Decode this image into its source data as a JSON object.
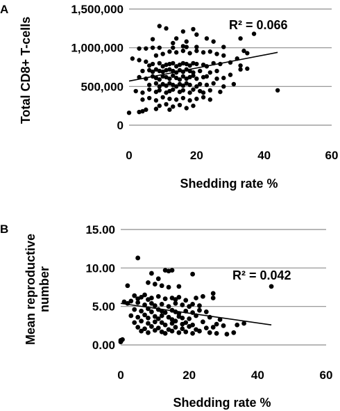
{
  "chart_data": [
    {
      "panel": "A",
      "type": "scatter",
      "xlabel": "Shedding rate %",
      "ylabel": "Total CD8+ T-cells",
      "xlim": [
        0,
        60
      ],
      "ylim": [
        0,
        1500000
      ],
      "xticks": [
        0,
        20,
        40,
        60
      ],
      "xtick_labels": [
        "0",
        "20",
        "40",
        "60"
      ],
      "yticks": [
        0,
        500000,
        1000000,
        1500000
      ],
      "ytick_labels": [
        "0",
        "500,000",
        "1,000,000",
        "1,500,000"
      ],
      "grid": "horizontal",
      "annotation": "R² = 0.066",
      "trendline": {
        "x": [
          0,
          44
        ],
        "y": [
          570000,
          940000
        ]
      },
      "points": [
        [
          9,
          1280000
        ],
        [
          11,
          1250000
        ],
        [
          19,
          1240000
        ],
        [
          20,
          1170000
        ],
        [
          37,
          1180000
        ],
        [
          23,
          1120000
        ],
        [
          33,
          1120000
        ],
        [
          16,
          1210000
        ],
        [
          14,
          1120000
        ],
        [
          7,
          1110000
        ],
        [
          13,
          1060000
        ],
        [
          17,
          1080000
        ],
        [
          25,
          1080000
        ],
        [
          3,
          990000
        ],
        [
          5,
          990000
        ],
        [
          7,
          1000000
        ],
        [
          9,
          1000000
        ],
        [
          13,
          1000000
        ],
        [
          17,
          1010000
        ],
        [
          20,
          1010000
        ],
        [
          28,
          1010000
        ],
        [
          16,
          1020000
        ],
        [
          1,
          860000
        ],
        [
          3,
          840000
        ],
        [
          5,
          820000
        ],
        [
          8,
          900000
        ],
        [
          10,
          920000
        ],
        [
          12,
          950000
        ],
        [
          14,
          940000
        ],
        [
          16,
          960000
        ],
        [
          18,
          930000
        ],
        [
          20,
          960000
        ],
        [
          22,
          940000
        ],
        [
          24,
          950000
        ],
        [
          26,
          920000
        ],
        [
          28,
          900000
        ],
        [
          34,
          960000
        ],
        [
          35,
          930000
        ],
        [
          6,
          770000
        ],
        [
          7,
          790000
        ],
        [
          9,
          800000
        ],
        [
          10,
          760000
        ],
        [
          11,
          780000
        ],
        [
          12,
          790000
        ],
        [
          13,
          800000
        ],
        [
          14,
          760000
        ],
        [
          15,
          780000
        ],
        [
          16,
          800000
        ],
        [
          17,
          790000
        ],
        [
          18,
          770000
        ],
        [
          19,
          800000
        ],
        [
          20,
          790000
        ],
        [
          22,
          780000
        ],
        [
          23,
          760000
        ],
        [
          25,
          800000
        ],
        [
          27,
          790000
        ],
        [
          30,
          810000
        ],
        [
          32,
          860000
        ],
        [
          33,
          770000
        ],
        [
          4,
          700000
        ],
        [
          6,
          710000
        ],
        [
          7,
          690000
        ],
        [
          8,
          720000
        ],
        [
          9,
          700000
        ],
        [
          10,
          690000
        ],
        [
          11,
          710000
        ],
        [
          12,
          720000
        ],
        [
          13,
          700000
        ],
        [
          14,
          680000
        ],
        [
          15,
          710000
        ],
        [
          16,
          690000
        ],
        [
          17,
          720000
        ],
        [
          18,
          700000
        ],
        [
          19,
          680000
        ],
        [
          21,
          700000
        ],
        [
          24,
          680000
        ],
        [
          26,
          700000
        ],
        [
          33,
          720000
        ],
        [
          35,
          730000
        ],
        [
          3,
          620000
        ],
        [
          5,
          600000
        ],
        [
          7,
          630000
        ],
        [
          8,
          610000
        ],
        [
          9,
          590000
        ],
        [
          10,
          630000
        ],
        [
          11,
          620000
        ],
        [
          12,
          600000
        ],
        [
          13,
          640000
        ],
        [
          14,
          610000
        ],
        [
          15,
          590000
        ],
        [
          16,
          630000
        ],
        [
          17,
          600000
        ],
        [
          18,
          620000
        ],
        [
          19,
          640000
        ],
        [
          20,
          600000
        ],
        [
          22,
          620000
        ],
        [
          23,
          630000
        ],
        [
          26,
          600000
        ],
        [
          28,
          610000
        ],
        [
          30,
          650000
        ],
        [
          6,
          520000
        ],
        [
          8,
          540000
        ],
        [
          9,
          500000
        ],
        [
          10,
          530000
        ],
        [
          11,
          510000
        ],
        [
          12,
          540000
        ],
        [
          13,
          520000
        ],
        [
          14,
          500000
        ],
        [
          15,
          530000
        ],
        [
          16,
          510000
        ],
        [
          17,
          540000
        ],
        [
          18,
          520000
        ],
        [
          20,
          500000
        ],
        [
          21,
          530000
        ],
        [
          23,
          520000
        ],
        [
          25,
          540000
        ],
        [
          28,
          500000
        ],
        [
          31,
          530000
        ],
        [
          2,
          440000
        ],
        [
          4,
          420000
        ],
        [
          6,
          460000
        ],
        [
          8,
          430000
        ],
        [
          9,
          450000
        ],
        [
          11,
          420000
        ],
        [
          12,
          440000
        ],
        [
          13,
          460000
        ],
        [
          15,
          430000
        ],
        [
          16,
          450000
        ],
        [
          18,
          420000
        ],
        [
          19,
          460000
        ],
        [
          21,
          440000
        ],
        [
          22,
          420000
        ],
        [
          24,
          450000
        ],
        [
          27,
          430000
        ],
        [
          44,
          450000
        ],
        [
          4,
          330000
        ],
        [
          6,
          350000
        ],
        [
          8,
          320000
        ],
        [
          10,
          360000
        ],
        [
          12,
          340000
        ],
        [
          14,
          330000
        ],
        [
          16,
          350000
        ],
        [
          18,
          320000
        ],
        [
          20,
          340000
        ],
        [
          22,
          360000
        ],
        [
          24,
          330000
        ],
        [
          9,
          250000
        ],
        [
          11,
          270000
        ],
        [
          13,
          240000
        ],
        [
          15,
          260000
        ],
        [
          17,
          220000
        ],
        [
          19,
          250000
        ],
        [
          0,
          160000
        ],
        [
          3,
          170000
        ],
        [
          4,
          180000
        ],
        [
          5,
          200000
        ],
        [
          8,
          210000
        ],
        [
          12,
          200000
        ]
      ]
    },
    {
      "panel": "B",
      "type": "scatter",
      "xlabel": "Shedding rate %",
      "ylabel_lines": [
        "Mean reproductive",
        "number"
      ],
      "xlim": [
        0,
        60
      ],
      "ylim": [
        0,
        15
      ],
      "xticks": [
        0,
        20,
        40,
        60
      ],
      "xtick_labels": [
        "0",
        "20",
        "40",
        "60"
      ],
      "yticks": [
        0,
        5,
        10,
        15
      ],
      "ytick_labels": [
        "0.00",
        "5.00",
        "10.00",
        "15.00"
      ],
      "grid": "horizontal",
      "annotation": "R² = 0.042",
      "trendline": {
        "x": [
          0,
          44
        ],
        "y": [
          5.4,
          2.6
        ]
      },
      "points": [
        [
          5,
          11.3
        ],
        [
          13,
          9.7
        ],
        [
          14,
          9.6
        ],
        [
          15,
          9.7
        ],
        [
          21,
          9.2
        ],
        [
          9,
          9.3
        ],
        [
          11,
          8.6
        ],
        [
          2,
          7.7
        ],
        [
          8,
          8.1
        ],
        [
          10,
          7.9
        ],
        [
          12,
          7.7
        ],
        [
          14,
          7.5
        ],
        [
          17,
          7.6
        ],
        [
          44,
          7.6
        ],
        [
          4,
          6.4
        ],
        [
          5,
          6.0
        ],
        [
          6,
          6.2
        ],
        [
          7,
          6.5
        ],
        [
          8,
          5.9
        ],
        [
          9,
          6.1
        ],
        [
          11,
          6.3
        ],
        [
          13,
          6.0
        ],
        [
          15,
          6.1
        ],
        [
          16,
          5.9
        ],
        [
          17,
          6.2
        ],
        [
          19,
          5.8
        ],
        [
          22,
          6.1
        ],
        [
          24,
          6.3
        ],
        [
          27,
          6.7
        ],
        [
          27,
          6.1
        ],
        [
          1,
          5.6
        ],
        [
          2,
          5.4
        ],
        [
          3,
          5.7
        ],
        [
          5,
          5.5
        ],
        [
          7,
          5.2
        ],
        [
          9,
          5.4
        ],
        [
          10,
          5.1
        ],
        [
          12,
          5.3
        ],
        [
          14,
          5.0
        ],
        [
          16,
          5.4
        ],
        [
          18,
          5.2
        ],
        [
          20,
          5.0
        ],
        [
          21,
          5.3
        ],
        [
          23,
          5.1
        ],
        [
          4,
          4.6
        ],
        [
          6,
          4.4
        ],
        [
          8,
          4.7
        ],
        [
          9,
          4.3
        ],
        [
          11,
          4.6
        ],
        [
          12,
          4.4
        ],
        [
          13,
          4.2
        ],
        [
          15,
          4.5
        ],
        [
          16,
          4.3
        ],
        [
          17,
          4.1
        ],
        [
          19,
          4.4
        ],
        [
          21,
          4.2
        ],
        [
          23,
          4.5
        ],
        [
          25,
          4.3
        ],
        [
          3,
          3.8
        ],
        [
          5,
          3.6
        ],
        [
          7,
          3.9
        ],
        [
          8,
          3.5
        ],
        [
          10,
          3.7
        ],
        [
          11,
          3.4
        ],
        [
          12,
          3.8
        ],
        [
          14,
          3.6
        ],
        [
          15,
          3.3
        ],
        [
          17,
          3.7
        ],
        [
          18,
          3.5
        ],
        [
          20,
          3.4
        ],
        [
          22,
          3.8
        ],
        [
          26,
          3.6
        ],
        [
          29,
          3.3
        ],
        [
          4,
          2.9
        ],
        [
          6,
          3.1
        ],
        [
          8,
          2.8
        ],
        [
          10,
          3.0
        ],
        [
          12,
          2.9
        ],
        [
          13,
          2.6
        ],
        [
          15,
          2.8
        ],
        [
          16,
          3.1
        ],
        [
          18,
          2.7
        ],
        [
          19,
          2.9
        ],
        [
          21,
          2.6
        ],
        [
          24,
          3.0
        ],
        [
          28,
          2.7
        ],
        [
          30,
          2.5
        ],
        [
          34,
          2.6
        ],
        [
          36,
          2.8
        ],
        [
          5,
          2.3
        ],
        [
          7,
          2.1
        ],
        [
          9,
          2.4
        ],
        [
          11,
          2.2
        ],
        [
          14,
          2.0
        ],
        [
          16,
          2.3
        ],
        [
          18,
          2.1
        ],
        [
          20,
          2.4
        ],
        [
          22,
          2.0
        ],
        [
          25,
          2.2
        ],
        [
          27,
          2.3
        ],
        [
          6,
          1.8
        ],
        [
          8,
          1.6
        ],
        [
          10,
          1.9
        ],
        [
          12,
          1.7
        ],
        [
          13,
          1.5
        ],
        [
          15,
          1.8
        ],
        [
          17,
          1.6
        ],
        [
          19,
          1.7
        ],
        [
          21,
          1.5
        ],
        [
          23,
          1.8
        ],
        [
          26,
          1.6
        ],
        [
          28,
          1.5
        ],
        [
          31,
          1.4
        ],
        [
          33,
          1.6
        ],
        [
          0,
          0.6
        ],
        [
          0,
          0.4
        ],
        [
          0.5,
          0.7
        ]
      ]
    }
  ]
}
